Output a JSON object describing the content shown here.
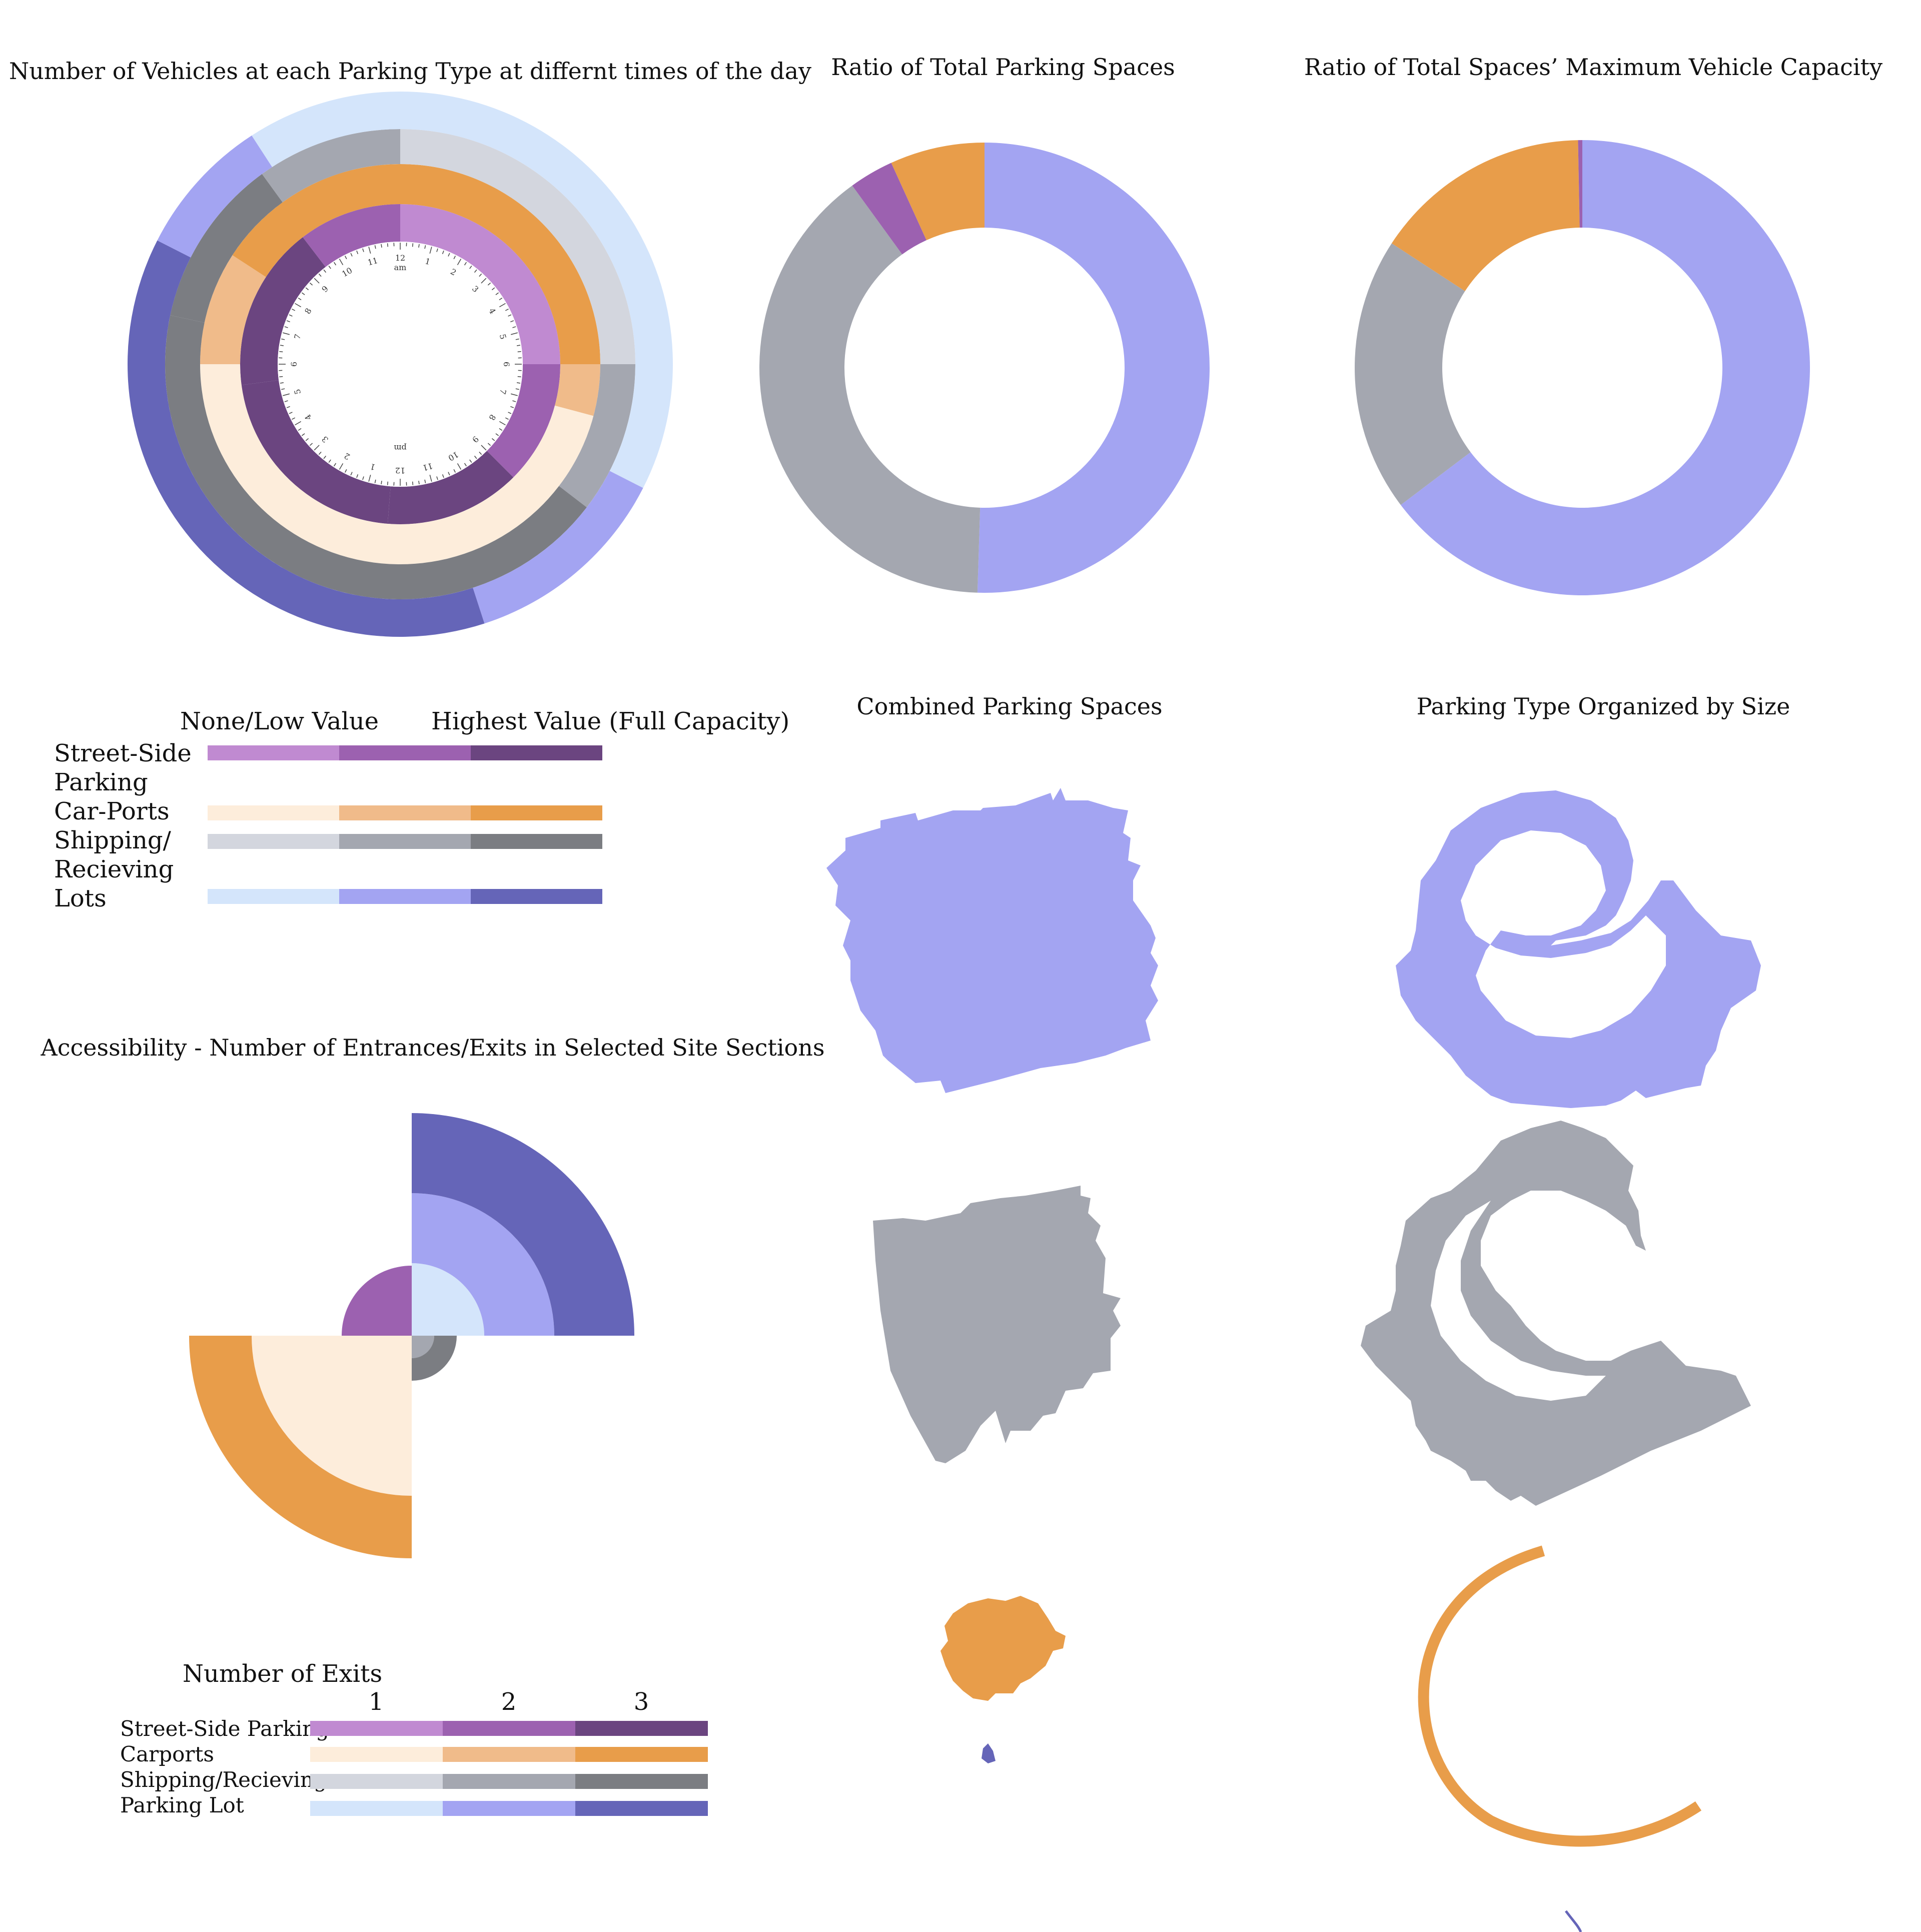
{
  "colors": {
    "street": [
      "#c08ad1",
      "#9c61b0",
      "#6b4580"
    ],
    "carport": [
      "#fdeddb",
      "#f0bb8a",
      "#e89d4a"
    ],
    "shipping": [
      "#d3d6de",
      "#a4a7b0",
      "#7b7d82"
    ],
    "lot": [
      "#d4e5fb",
      "#a3a4f2",
      "#6565b8"
    ]
  },
  "chart_data": [
    {
      "type": "radial-bar",
      "title": "Number of Vehicles at each Parking Type at differnt times of the day",
      "clock": {
        "am_label": "am",
        "pm_label": "pm",
        "am_ticks": [
          "12",
          "1",
          "2",
          "3",
          "4",
          "5",
          "6",
          "7",
          "8",
          "9",
          "10",
          "11"
        ],
        "pm_ticks": [
          "12",
          "1",
          "2",
          "3",
          "4",
          "5",
          "6",
          "7",
          "8",
          "9",
          "10",
          "11"
        ]
      },
      "rings": [
        {
          "series": "street",
          "segments": [
            {
              "start_hour": 0,
              "end_hour": 6,
              "level": 0
            },
            {
              "start_hour": 6,
              "end_hour": 9,
              "level": 1
            },
            {
              "start_hour": 9,
              "end_hour": 12.3,
              "level": 2
            },
            {
              "start_hour": 12.3,
              "end_hour": 17.5,
              "level": 2
            },
            {
              "start_hour": 17.5,
              "end_hour": 21.5,
              "level": 2
            },
            {
              "start_hour": 21.5,
              "end_hour": 24,
              "level": 1
            }
          ]
        },
        {
          "series": "carport",
          "segments": [
            {
              "start_hour": 0,
              "end_hour": 6,
              "level": 2
            },
            {
              "start_hour": 6,
              "end_hour": 7,
              "level": 1
            },
            {
              "start_hour": 7,
              "end_hour": 18,
              "level": 0
            },
            {
              "start_hour": 18,
              "end_hour": 20.2,
              "level": 1
            },
            {
              "start_hour": 20.2,
              "end_hour": 24,
              "level": 2
            }
          ]
        },
        {
          "series": "shipping",
          "segments": [
            {
              "start_hour": 0,
              "end_hour": 6,
              "level": 0
            },
            {
              "start_hour": 6,
              "end_hour": 8.5,
              "level": 1
            },
            {
              "start_hour": 8.5,
              "end_hour": 18.8,
              "level": 2
            },
            {
              "start_hour": 18.8,
              "end_hour": 21.6,
              "level": 2
            },
            {
              "start_hour": 21.6,
              "end_hour": 24,
              "level": 1
            }
          ]
        },
        {
          "series": "lot",
          "segments": [
            {
              "start_hour": 0,
              "end_hour": 7.8,
              "level": 0
            },
            {
              "start_hour": 7.8,
              "end_hour": 10.8,
              "level": 1
            },
            {
              "start_hour": 10.8,
              "end_hour": 19.8,
              "level": 2
            },
            {
              "start_hour": 19.8,
              "end_hour": 21.8,
              "level": 1
            },
            {
              "start_hour": 21.8,
              "end_hour": 24,
              "level": 0
            }
          ]
        }
      ]
    },
    {
      "type": "pie",
      "title": "Ratio of Total Parking Spaces",
      "slices": [
        {
          "series": "lot",
          "value": 50.5
        },
        {
          "series": "shipping",
          "value": 39.5
        },
        {
          "series": "street",
          "value": 3.2
        },
        {
          "series": "carport",
          "value": 6.8
        }
      ]
    },
    {
      "type": "pie",
      "title": "Ratio of Total Spaces’ Maximum Vehicle Capacity",
      "slices": [
        {
          "series": "lot",
          "value": 64.7
        },
        {
          "series": "shipping",
          "value": 19.5
        },
        {
          "series": "carport",
          "value": 15.5
        },
        {
          "series": "street",
          "value": 0.3
        }
      ]
    },
    {
      "type": "rose",
      "title": "Accessibility - Number of Entrances/Exits in Selected Site Sections",
      "sectors": [
        {
          "series": "lot",
          "quadrant": "top-right",
          "exits": 3
        },
        {
          "series": "street",
          "quadrant": "top-left",
          "exits": 1
        },
        {
          "series": "carport",
          "quadrant": "bottom-left",
          "exits": 3
        },
        {
          "series": "shipping",
          "quadrant": "bottom-right",
          "exits": 1
        }
      ]
    }
  ],
  "legend_capacity": {
    "low_label": "None/Low Value",
    "high_label": "Highest Value (Full Capacity)",
    "rows": [
      {
        "series": "street",
        "label_lines": [
          "Street-Side",
          "Parking"
        ]
      },
      {
        "series": "carport",
        "label_lines": [
          "Car-Ports"
        ]
      },
      {
        "series": "shipping",
        "label_lines": [
          "Shipping/",
          "Recieving"
        ]
      },
      {
        "series": "lot",
        "label_lines": [
          "Lots"
        ]
      }
    ]
  },
  "legend_exits": {
    "title": "Number of Exits",
    "ticks": [
      "1",
      "2",
      "3"
    ],
    "rows": [
      {
        "series": "street",
        "label": "Street-Side Parking"
      },
      {
        "series": "carport",
        "label": "Carports"
      },
      {
        "series": "shipping",
        "label": "Shipping/Recieving"
      },
      {
        "series": "lot",
        "label": "Parking Lot"
      }
    ]
  },
  "maps": {
    "combined_title": "Combined Parking Spaces",
    "organized_title": "Parking Type Organized by Size"
  }
}
